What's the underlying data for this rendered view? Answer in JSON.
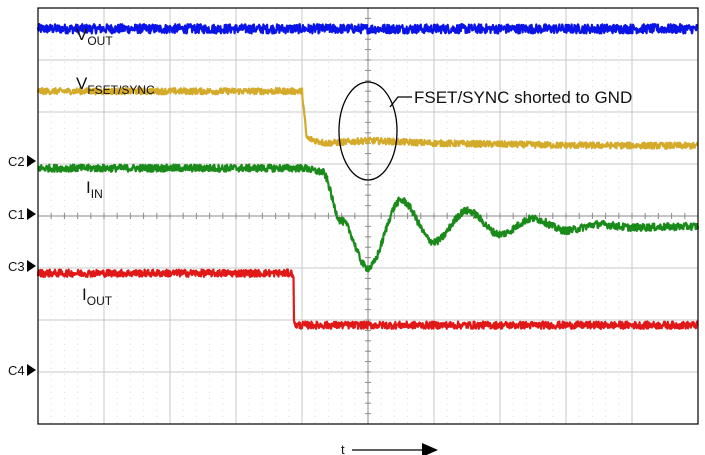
{
  "chart_data": {
    "type": "line",
    "xlabel": "t",
    "grid": true,
    "grid_divisions": {
      "x": 10,
      "y": 8
    },
    "annotation": "FSET/SYNC shorted to GND",
    "channel_markers": [
      "C1",
      "C2",
      "C3",
      "C4"
    ],
    "colors": {
      "vout": "#0a14e6",
      "vfset": "#d4aa2a",
      "iin": "#1a8a1a",
      "iout": "#e01818",
      "grid": "#c8c8c8",
      "frame": "#000000"
    },
    "series": [
      {
        "name": "VOUT",
        "name_main": "V",
        "name_sub": "OUT",
        "color_key": "vout",
        "x": [
          0,
          10
        ],
        "y": [
          7.6,
          7.6
        ],
        "noise": 0.09
      },
      {
        "name": "VFSET/SYNC",
        "name_main": "V",
        "name_sub": "FSET/SYNC",
        "color_key": "vfset",
        "x": [
          0,
          4.0,
          4.07,
          4.35,
          5.0,
          6.0,
          7.0,
          8.0,
          10
        ],
        "y": [
          6.4,
          6.4,
          5.5,
          5.4,
          5.45,
          5.4,
          5.38,
          5.36,
          5.35
        ],
        "noise": 0.06
      },
      {
        "name": "IIN",
        "name_main": "I",
        "name_sub": "IN",
        "color_key": "iin",
        "x": [
          0,
          4.0,
          4.3,
          4.6,
          5.0,
          5.5,
          6.0,
          6.5,
          7.0,
          7.5,
          8.0,
          8.5,
          9.0,
          10
        ],
        "y": [
          4.92,
          4.92,
          4.85,
          3.9,
          3.0,
          4.3,
          3.5,
          4.1,
          3.65,
          3.95,
          3.72,
          3.84,
          3.78,
          3.8
        ],
        "smooth": true,
        "noise": 0.07
      },
      {
        "name": "IOUT",
        "name_main": "I",
        "name_sub": "OUT",
        "color_key": "iout",
        "x": [
          0,
          3.87,
          3.88,
          10
        ],
        "y": [
          2.9,
          2.9,
          1.9,
          1.9
        ],
        "noise": 0.07
      }
    ]
  }
}
